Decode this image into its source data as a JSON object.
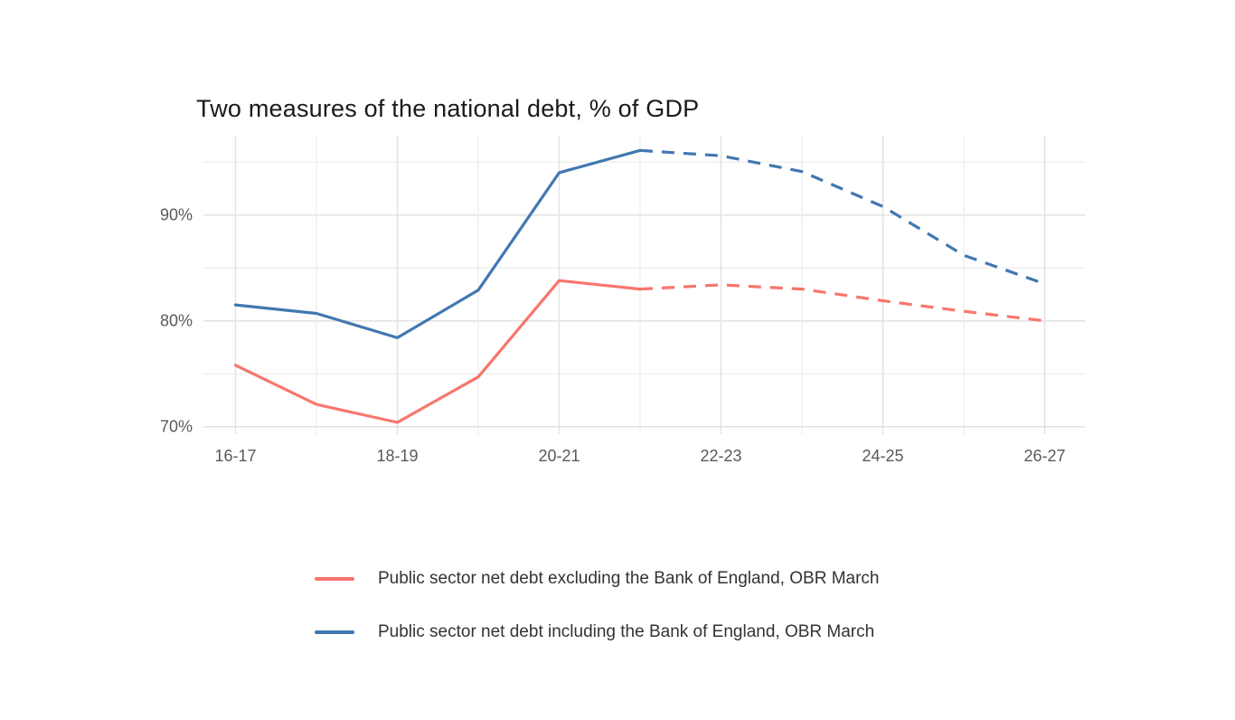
{
  "chart_data": {
    "type": "line",
    "title": "Two measures of the national debt, % of GDP",
    "xlabel": "",
    "ylabel": "",
    "categories": [
      "16-17",
      "17-18",
      "18-19",
      "19-20",
      "20-21",
      "21-22",
      "22-23",
      "23-24",
      "24-25",
      "25-26",
      "26-27"
    ],
    "x_tick_labels": [
      "16-17",
      "18-19",
      "20-21",
      "22-23",
      "24-25",
      "26-27"
    ],
    "y_ticks": [
      {
        "value": 70,
        "label": "70%"
      },
      {
        "value": 80,
        "label": "80%"
      },
      {
        "value": 90,
        "label": "90%"
      }
    ],
    "y_minor_ticks": [
      75,
      85,
      95
    ],
    "ylim": [
      69.3,
      97.5
    ],
    "grid": true,
    "legend_position": "bottom-left",
    "forecast_dashed_from": "21-22",
    "forecast_start_index": 5,
    "series": [
      {
        "name": "Public sector net debt excluding the Bank of England, OBR March",
        "color": "#F8766D",
        "values": [
          75.8,
          72.1,
          70.4,
          74.7,
          83.8,
          83.0,
          83.4,
          83.0,
          81.9,
          80.9,
          80.0
        ]
      },
      {
        "name": "Public sector net debt including the Bank of England, OBR March",
        "color": "#4178B1",
        "values": [
          81.5,
          80.7,
          78.4,
          82.9,
          94.0,
          96.1,
          95.6,
          94.1,
          90.8,
          86.2,
          83.5
        ]
      }
    ],
    "colors": {
      "grid_major": "#e2e2e2",
      "grid_minor": "#ebebeb",
      "axis_text": "#595959",
      "title_text": "#1a1a1a",
      "legend_text": "#333333",
      "background": "#ffffff"
    }
  }
}
